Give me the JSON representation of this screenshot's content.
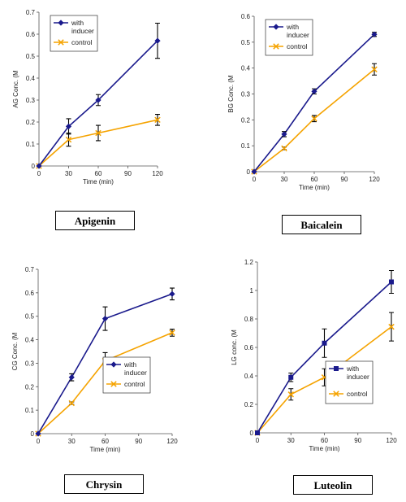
{
  "colors": {
    "with_inducer": "#1a1a8c",
    "control": "#f5a300",
    "axis": "#555555",
    "error": "#000000"
  },
  "chart_data": [
    {
      "type": "line",
      "name_label": "Apigenin",
      "xlabel": "Time (min)",
      "ylabel": "AG Conc. (M",
      "xlim": [
        0,
        120
      ],
      "xticks": [
        0,
        30,
        60,
        90,
        120
      ],
      "ylim": [
        0,
        0.7
      ],
      "yticks": [
        "0",
        "0.1",
        "0.2",
        "0.3",
        "0.4",
        "0.5",
        "0.6",
        "0.7"
      ],
      "legend": {
        "position": "top-left",
        "with_label": [
          "with",
          "inducer"
        ],
        "control_label": [
          "control"
        ]
      },
      "series": [
        {
          "key": "with",
          "marker": "diamond",
          "x": [
            0,
            30,
            60,
            120
          ],
          "values": [
            0,
            0.18,
            0.3,
            0.57
          ],
          "err": [
            0,
            0.035,
            0.025,
            0.08
          ]
        },
        {
          "key": "control",
          "marker": "x",
          "x": [
            0,
            30,
            60,
            120
          ],
          "values": [
            0,
            0.12,
            0.15,
            0.21
          ],
          "err": [
            0,
            0.03,
            0.035,
            0.025
          ]
        }
      ]
    },
    {
      "type": "line",
      "name_label": "Baicalein",
      "xlabel": "Time (min)",
      "ylabel": "BG Conc. (M",
      "xlim": [
        0,
        120
      ],
      "xticks": [
        0,
        30,
        60,
        90,
        120
      ],
      "ylim": [
        0,
        0.6
      ],
      "yticks": [
        "0",
        "0.1",
        "0.2",
        "0.3",
        "0.4",
        "0.5",
        "0.6"
      ],
      "legend": {
        "position": "top-left",
        "with_label": [
          "with",
          "inducer"
        ],
        "control_label": [
          "control"
        ]
      },
      "series": [
        {
          "key": "with",
          "marker": "diamond",
          "x": [
            0,
            30,
            60,
            120
          ],
          "values": [
            0,
            0.145,
            0.31,
            0.53
          ],
          "err": [
            0,
            0.01,
            0.01,
            0.008
          ]
        },
        {
          "key": "control",
          "marker": "x",
          "x": [
            0,
            30,
            60,
            120
          ],
          "values": [
            0,
            0.09,
            0.205,
            0.395
          ],
          "err": [
            0,
            0.005,
            0.012,
            0.022
          ]
        }
      ]
    },
    {
      "type": "line",
      "name_label": "Chrysin",
      "xlabel": "Time (min)",
      "ylabel": "CG Conc. (M",
      "xlim": [
        0,
        120
      ],
      "xticks": [
        0,
        30,
        60,
        90,
        120
      ],
      "ylim": [
        0,
        0.7
      ],
      "yticks": [
        "0",
        "0.1",
        "0.2",
        "0.3",
        "0.4",
        "0.5",
        "0.6",
        "0.7"
      ],
      "legend": {
        "position": "center-right",
        "with_label": [
          "with",
          "inducer"
        ],
        "control_label": [
          "control"
        ]
      },
      "series": [
        {
          "key": "with",
          "marker": "diamond",
          "x": [
            0,
            30,
            60,
            120
          ],
          "values": [
            0,
            0.24,
            0.49,
            0.595
          ],
          "err": [
            0,
            0.015,
            0.05,
            0.025
          ]
        },
        {
          "key": "control",
          "marker": "x",
          "x": [
            0,
            30,
            60,
            120
          ],
          "values": [
            0,
            0.13,
            0.31,
            0.43
          ],
          "err": [
            0,
            0.005,
            0.035,
            0.015
          ]
        }
      ]
    },
    {
      "type": "line",
      "name_label": "Luteolin",
      "xlabel": "Time (min)",
      "ylabel": "LG conc. (M",
      "xlim": [
        0,
        120
      ],
      "xticks": [
        0,
        30,
        60,
        90,
        120
      ],
      "ylim": [
        0,
        1.2
      ],
      "yticks": [
        "0",
        "0.2",
        "0.4",
        "0.6",
        "0.8",
        "1",
        "1.2"
      ],
      "legend": {
        "position": "bottom-right",
        "with_label": [
          "with",
          "inducer"
        ],
        "control_label": [
          "control"
        ]
      },
      "series": [
        {
          "key": "with",
          "marker": "square",
          "x": [
            0,
            30,
            60,
            120
          ],
          "values": [
            0,
            0.39,
            0.63,
            1.06
          ],
          "err": [
            0,
            0.03,
            0.1,
            0.08
          ]
        },
        {
          "key": "control",
          "marker": "x",
          "x": [
            0,
            30,
            60,
            120
          ],
          "values": [
            0,
            0.27,
            0.39,
            0.745
          ],
          "err": [
            0,
            0.04,
            0.06,
            0.1
          ]
        }
      ]
    }
  ]
}
